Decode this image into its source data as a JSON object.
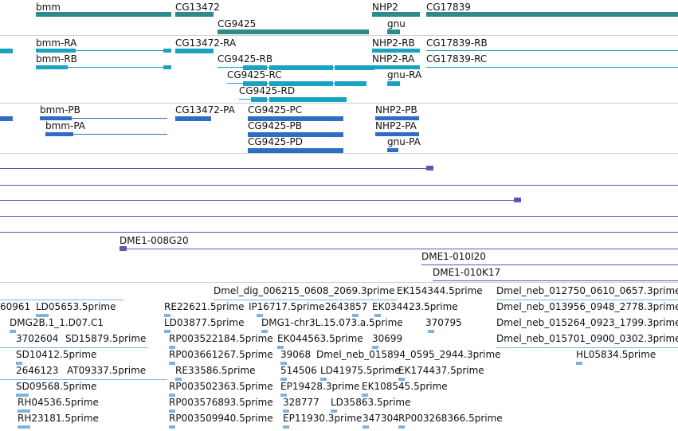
{
  "colors": {
    "gene": "#2e8b8b",
    "transcript": "#1aa3c0",
    "protein": "#2f6cc4",
    "contig": "#6a4fb0",
    "est": "#7fb3dc",
    "divider": "#d0d0d0"
  },
  "tracks": {
    "genes": [
      "bmm",
      "CG13472",
      "CG9425",
      "NHP2",
      "gnu",
      "CG17839"
    ],
    "transcripts": [
      "bmm-RA",
      "bmm-RB",
      "CG13472-RA",
      "CG9425-RB",
      "CG9425-RC",
      "CG9425-RD",
      "NHP2-RB",
      "NHP2-RA",
      "gnu-RA",
      "CG17839-RB",
      "CG17839-RC"
    ],
    "proteins": [
      "bmm-PB",
      "bmm-PA",
      "CG13472-PA",
      "CG9425-PC",
      "CG9425-PB",
      "CG9425-PD",
      "NHP2-PB",
      "NHP2-PA",
      "gnu-PA"
    ],
    "clones": [
      "DME1-008G20",
      "DME1-010I20",
      "DME1-010K17"
    ],
    "ests": [
      "Dmel_dig_006215_0608_2069.3prime",
      "EK154344.5prime",
      "Dmel_neb_012750_0610_0657.3prime",
      "60961",
      "LD05653.5prime",
      "RE22621.5prime",
      "IP16717.5prime",
      "2643857",
      "EK034423.5prime",
      "Dmel_neb_013956_0948_2778.3prime",
      "DMG2B.1_1.D07.C1",
      "LD03877.5prime",
      "DMG1-chr3L.15.073.a.5prime",
      "370795",
      "Dmel_neb_015264_0923_1799.3prime",
      "3702604",
      "SD15879.5prime",
      "RP003522184.5prime",
      "EK044563.5prime",
      "30699",
      "Dmel_neb_015701_0900_0302.3prime",
      "SD10412.5prime",
      "RP003661267.5prime",
      "39068",
      "Dmel_neb_015894_0595_2944.3prime",
      "HL05834.5prime",
      "2646123",
      "AT09337.5prime",
      "RE33586.5prime",
      "514506",
      "LD41975.5prime",
      "EK174437.5prime",
      "SD09568.5prime",
      "RP003502363.5prime",
      "EP19428.3prime",
      "EK108545.5prime",
      "RH04536.5prime",
      "RP003576893.5prime",
      "328777",
      "LD35863.5prime",
      "RH23181.5prime",
      "RP003509940.5prime",
      "EP11930.3prime",
      "347304",
      "RP003268366.5prime"
    ]
  }
}
